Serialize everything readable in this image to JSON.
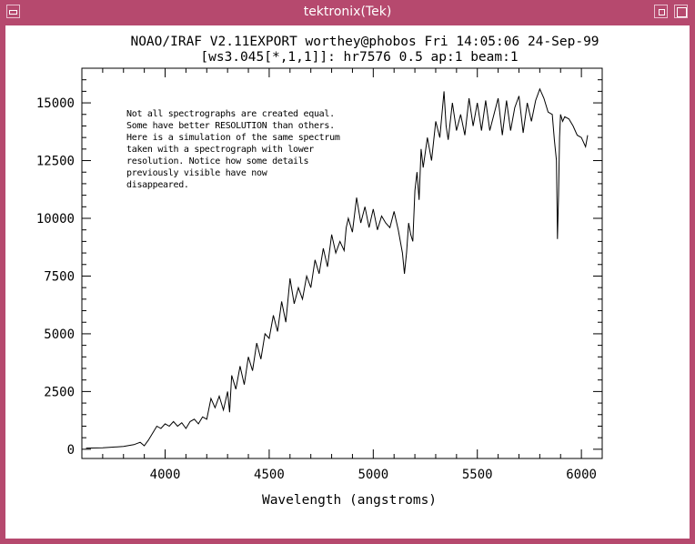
{
  "window": {
    "title": "tektronix(Tek)"
  },
  "chart_data": {
    "type": "line",
    "header_line1": "NOAO/IRAF V2.11EXPORT worthey@phobos Fri 14:05:06 24-Sep-99",
    "header_line2": "[ws3.045[*,1,1]]: hr7576 0.5 ap:1 beam:1",
    "xlabel": "Wavelength (angstroms)",
    "ylabel": "",
    "xlim": [
      3600,
      6100
    ],
    "ylim": [
      -400,
      16500
    ],
    "xticks": [
      4000,
      4500,
      5000,
      5500,
      6000
    ],
    "yticks": [
      0,
      2500,
      5000,
      7500,
      10000,
      12500,
      15000
    ],
    "xtick_labels": [
      "4000",
      "4500",
      "5000",
      "5500",
      "6000"
    ],
    "ytick_labels": [
      "0",
      "2500",
      "5000",
      "7500",
      "10000",
      "12500",
      "15000"
    ],
    "annotation": [
      "Not all spectrographs are created equal.",
      "Some have better RESOLUTION than others.",
      "Here is a simulation of the same spectrum",
      "taken with a spectrograph with lower",
      "resolution. Notice how some details",
      "previously visible have now",
      "disappeared."
    ],
    "series": [
      {
        "x": [
          3620,
          3700,
          3800,
          3850,
          3880,
          3900,
          3920,
          3940,
          3960,
          3980,
          4000,
          4020,
          4040,
          4060,
          4080,
          4100,
          4120,
          4140,
          4160,
          4180,
          4200,
          4220,
          4240,
          4260,
          4280,
          4300,
          4310,
          4320,
          4340,
          4360,
          4380,
          4400,
          4420,
          4440,
          4460,
          4480,
          4500,
          4520,
          4540,
          4560,
          4580,
          4600,
          4620,
          4640,
          4660,
          4680,
          4700,
          4720,
          4740,
          4760,
          4780,
          4800,
          4820,
          4840,
          4860,
          4870,
          4880,
          4900,
          4920,
          4940,
          4960,
          4980,
          5000,
          5020,
          5040,
          5060,
          5080,
          5100,
          5120,
          5140,
          5150,
          5160,
          5170,
          5180,
          5190,
          5200,
          5210,
          5220,
          5230,
          5240,
          5260,
          5280,
          5300,
          5320,
          5340,
          5350,
          5360,
          5380,
          5400,
          5420,
          5440,
          5460,
          5480,
          5500,
          5520,
          5540,
          5560,
          5580,
          5600,
          5620,
          5640,
          5660,
          5680,
          5700,
          5720,
          5740,
          5760,
          5780,
          5800,
          5820,
          5840,
          5860,
          5870,
          5880,
          5885,
          5890,
          5895,
          5900,
          5910,
          5920,
          5940,
          5960,
          5980,
          6000,
          6020,
          6030
        ],
        "y": [
          50,
          60,
          120,
          200,
          300,
          150,
          400,
          700,
          1000,
          900,
          1100,
          1000,
          1200,
          1000,
          1150,
          900,
          1200,
          1300,
          1100,
          1400,
          1300,
          2200,
          1800,
          2300,
          1700,
          2500,
          1600,
          3200,
          2600,
          3600,
          2800,
          4000,
          3400,
          4600,
          3900,
          5000,
          4800,
          5800,
          5100,
          6400,
          5500,
          7400,
          6300,
          7000,
          6500,
          7500,
          7000,
          8200,
          7600,
          8700,
          7900,
          9300,
          8500,
          9000,
          8600,
          9600,
          10000,
          9400,
          10900,
          9800,
          10500,
          9600,
          10400,
          9500,
          10100,
          9800,
          9600,
          10300,
          9500,
          8500,
          7600,
          8500,
          9800,
          9300,
          9000,
          11200,
          12000,
          10800,
          13000,
          12200,
          13500,
          12500,
          14200,
          13500,
          15500,
          14000,
          13400,
          15000,
          13800,
          14500,
          13600,
          15200,
          14000,
          15000,
          13800,
          15100,
          13800,
          14500,
          15200,
          13600,
          15100,
          13800,
          14800,
          15300,
          13700,
          15000,
          14200,
          15100,
          15600,
          15200,
          14600,
          14500,
          13400,
          12500,
          9100,
          11000,
          13500,
          14500,
          14200,
          14400,
          14300,
          14000,
          13600,
          13500,
          13100,
          13600
        ]
      }
    ]
  }
}
